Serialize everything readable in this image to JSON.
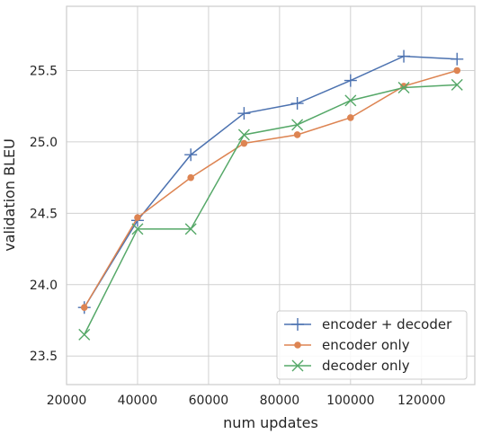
{
  "chart_data": {
    "type": "line",
    "title": "",
    "xlabel": "num updates",
    "ylabel": "validation BLEU",
    "xlim": [
      20000,
      135000
    ],
    "ylim": [
      23.3,
      25.95
    ],
    "xticks": [
      20000,
      40000,
      60000,
      80000,
      100000,
      120000
    ],
    "xtick_labels": [
      "20000",
      "40000",
      "60000",
      "80000",
      "100000",
      "120000"
    ],
    "yticks": [
      23.5,
      24.0,
      24.5,
      25.0,
      25.5
    ],
    "ytick_labels": [
      "23.5",
      "24.0",
      "24.5",
      "25.0",
      "25.5"
    ],
    "grid": true,
    "legend_position": "bottom-right",
    "x": [
      25000,
      40000,
      55000,
      70000,
      85000,
      100000,
      115000,
      130000
    ],
    "series": [
      {
        "name": "encoder + decoder",
        "color": "#4c72b0",
        "marker": "plus",
        "values": [
          23.84,
          24.45,
          24.91,
          25.2,
          25.27,
          25.43,
          25.6,
          25.58
        ]
      },
      {
        "name": "encoder only",
        "color": "#dd8452",
        "marker": "circle",
        "values": [
          23.84,
          24.47,
          24.75,
          24.99,
          25.05,
          25.17,
          25.39,
          25.5
        ]
      },
      {
        "name": "decoder only",
        "color": "#55a868",
        "marker": "x",
        "values": [
          23.65,
          24.39,
          24.39,
          25.05,
          25.12,
          25.29,
          25.38,
          25.4
        ]
      }
    ]
  }
}
